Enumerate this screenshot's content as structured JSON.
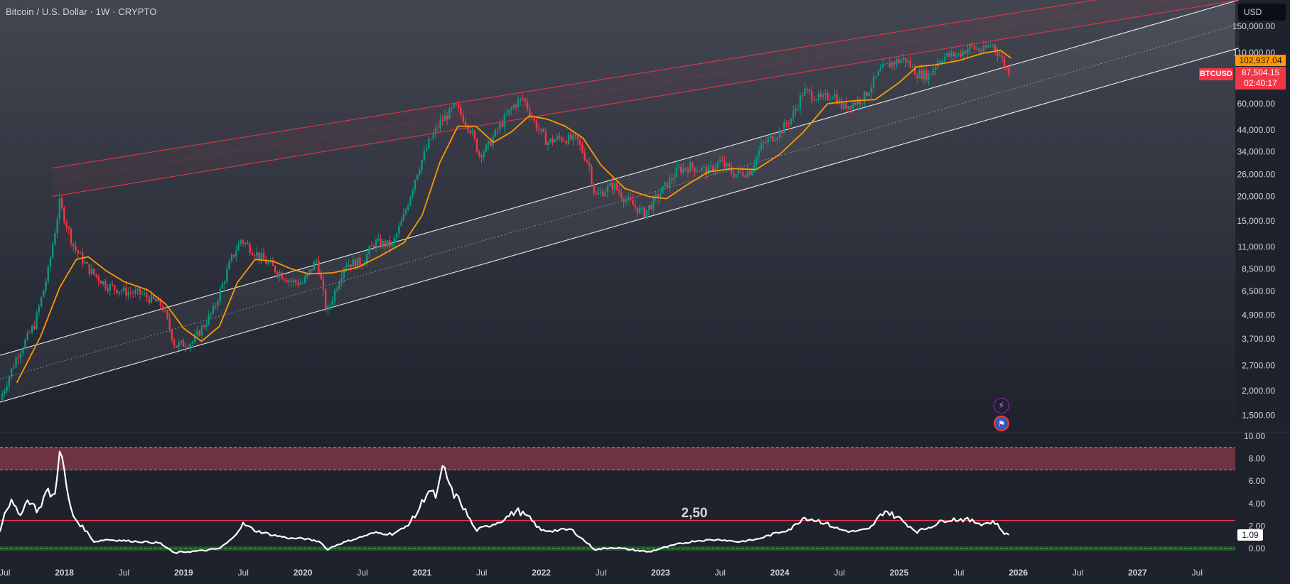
{
  "header": {
    "title": "Bitcoin / U.S. Dollar · 1W · CRYPTO",
    "currency": "USD"
  },
  "price_scale": {
    "ticker": "BTCUSD",
    "last_price": "87,504.15",
    "countdown": "02:40:17",
    "ma_value": "102,937.04",
    "ticks": [
      {
        "label": "150,000.00",
        "value": 150000
      },
      {
        "label": "110,000.00",
        "value": 110000
      },
      {
        "label": "60,000.00",
        "value": 60000
      },
      {
        "label": "44,000.00",
        "value": 44000
      },
      {
        "label": "34,000.00",
        "value": 34000
      },
      {
        "label": "26,000.00",
        "value": 26000
      },
      {
        "label": "20,000.00",
        "value": 20000
      },
      {
        "label": "15,000.00",
        "value": 15000
      },
      {
        "label": "11,000.00",
        "value": 11000
      },
      {
        "label": "8,500.00",
        "value": 8500
      },
      {
        "label": "6,500.00",
        "value": 6500
      },
      {
        "label": "4,900.00",
        "value": 4900
      },
      {
        "label": "3,700.00",
        "value": 3700
      },
      {
        "label": "2,700.00",
        "value": 2700
      },
      {
        "label": "2,000.00",
        "value": 2000
      },
      {
        "label": "1,500.00",
        "value": 1500
      }
    ]
  },
  "time_axis": {
    "ticks": [
      {
        "label": "Jul",
        "t": 2017.5
      },
      {
        "label": "2018",
        "t": 2018.0
      },
      {
        "label": "Jul",
        "t": 2018.5
      },
      {
        "label": "2019",
        "t": 2019.0
      },
      {
        "label": "Jul",
        "t": 2019.5
      },
      {
        "label": "2020",
        "t": 2020.0
      },
      {
        "label": "Jul",
        "t": 2020.5
      },
      {
        "label": "2021",
        "t": 2021.0
      },
      {
        "label": "Jul",
        "t": 2021.5
      },
      {
        "label": "2022",
        "t": 2022.0
      },
      {
        "label": "Jul",
        "t": 2022.5
      },
      {
        "label": "2023",
        "t": 2023.0
      },
      {
        "label": "Jul",
        "t": 2023.5
      },
      {
        "label": "2024",
        "t": 2024.0
      },
      {
        "label": "Jul",
        "t": 2024.5
      },
      {
        "label": "2025",
        "t": 2025.0
      },
      {
        "label": "Jul",
        "t": 2025.5
      },
      {
        "label": "2026",
        "t": 2026.0
      },
      {
        "label": "Jul",
        "t": 2026.5
      },
      {
        "label": "2027",
        "t": 2027.0
      },
      {
        "label": "Jul",
        "t": 2027.5
      }
    ]
  },
  "oscillator": {
    "current_value": "1.09",
    "level_label": "2,50",
    "ticks": [
      {
        "label": "10.00",
        "value": 10
      },
      {
        "label": "8.00",
        "value": 8
      },
      {
        "label": "6.00",
        "value": 6
      },
      {
        "label": "4.00",
        "value": 4
      },
      {
        "label": "2.00",
        "value": 2
      },
      {
        "label": "0.00",
        "value": 0
      }
    ]
  },
  "colors": {
    "background": "#1e222d",
    "candle_up": "#089981",
    "candle_down": "#f23645",
    "ma_line": "#ff9800",
    "channel_white": "#ffffff",
    "channel_red": "#f23645",
    "oscillator_line": "#ffffff",
    "overbought_zone": "#8a3a47",
    "oversold_zone": "#2e7d32"
  },
  "icons": [
    "flash-event-icon",
    "us-flag-event-icon"
  ],
  "chart_data": [
    {
      "type": "candlestick",
      "title": "Bitcoin / U.S. Dollar · 1W · CRYPTO",
      "scale": "log",
      "x_range": [
        2017.46,
        2027.82
      ],
      "y_range": [
        1230,
        205000
      ],
      "close_path": [
        [
          2017.46,
          1800
        ],
        [
          2017.6,
          3000
        ],
        [
          2017.75,
          4400
        ],
        [
          2017.86,
          8000
        ],
        [
          2017.96,
          18500
        ],
        [
          2018.08,
          11000
        ],
        [
          2018.2,
          8500
        ],
        [
          2018.35,
          7000
        ],
        [
          2018.5,
          6500
        ],
        [
          2018.65,
          6300
        ],
        [
          2018.82,
          5500
        ],
        [
          2018.93,
          3400
        ],
        [
          2019.08,
          3600
        ],
        [
          2019.25,
          5200
        ],
        [
          2019.4,
          9500
        ],
        [
          2019.48,
          12000
        ],
        [
          2019.6,
          10300
        ],
        [
          2019.75,
          8600
        ],
        [
          2019.9,
          7300
        ],
        [
          2020.0,
          7200
        ],
        [
          2020.12,
          9500
        ],
        [
          2020.2,
          5000
        ],
        [
          2020.35,
          9000
        ],
        [
          2020.5,
          9200
        ],
        [
          2020.6,
          11600
        ],
        [
          2020.75,
          11200
        ],
        [
          2020.85,
          16000
        ],
        [
          2020.95,
          26000
        ],
        [
          2021.05,
          37000
        ],
        [
          2021.15,
          48000
        ],
        [
          2021.28,
          58000
        ],
        [
          2021.4,
          45000
        ],
        [
          2021.48,
          33000
        ],
        [
          2021.55,
          36000
        ],
        [
          2021.65,
          46000
        ],
        [
          2021.78,
          60000
        ],
        [
          2021.85,
          64000
        ],
        [
          2021.95,
          47000
        ],
        [
          2022.05,
          38000
        ],
        [
          2022.15,
          40000
        ],
        [
          2022.3,
          39000
        ],
        [
          2022.4,
          29000
        ],
        [
          2022.45,
          20000
        ],
        [
          2022.6,
          23000
        ],
        [
          2022.7,
          19500
        ],
        [
          2022.86,
          16300
        ],
        [
          2023.0,
          21000
        ],
        [
          2023.15,
          27500
        ],
        [
          2023.25,
          28500
        ],
        [
          2023.4,
          27000
        ],
        [
          2023.5,
          30200
        ],
        [
          2023.62,
          26000
        ],
        [
          2023.75,
          27000
        ],
        [
          2023.85,
          37000
        ],
        [
          2024.0,
          43000
        ],
        [
          2024.1,
          51000
        ],
        [
          2024.2,
          70000
        ],
        [
          2024.35,
          63000
        ],
        [
          2024.45,
          68000
        ],
        [
          2024.52,
          58000
        ],
        [
          2024.6,
          60000
        ],
        [
          2024.7,
          64000
        ],
        [
          2024.85,
          90000
        ],
        [
          2024.95,
          98000
        ],
        [
          2025.05,
          102000
        ],
        [
          2025.15,
          86000
        ],
        [
          2025.25,
          84000
        ],
        [
          2025.35,
          104000
        ],
        [
          2025.5,
          108000
        ],
        [
          2025.6,
          118000
        ],
        [
          2025.7,
          112000
        ],
        [
          2025.78,
          122000
        ],
        [
          2025.84,
          108000
        ],
        [
          2025.9,
          91000
        ],
        [
          2025.94,
          87504
        ]
      ],
      "ma_path": [
        [
          2017.6,
          2200
        ],
        [
          2017.8,
          3800
        ],
        [
          2017.96,
          6800
        ],
        [
          2018.1,
          9500
        ],
        [
          2018.2,
          9800
        ],
        [
          2018.35,
          8300
        ],
        [
          2018.5,
          7300
        ],
        [
          2018.7,
          6600
        ],
        [
          2018.85,
          5600
        ],
        [
          2019.0,
          4200
        ],
        [
          2019.15,
          3600
        ],
        [
          2019.3,
          4300
        ],
        [
          2019.45,
          7200
        ],
        [
          2019.6,
          9500
        ],
        [
          2019.75,
          9300
        ],
        [
          2019.9,
          8500
        ],
        [
          2020.05,
          8000
        ],
        [
          2020.25,
          8100
        ],
        [
          2020.45,
          8600
        ],
        [
          2020.65,
          9900
        ],
        [
          2020.85,
          11600
        ],
        [
          2021.0,
          16000
        ],
        [
          2021.15,
          30000
        ],
        [
          2021.3,
          46000
        ],
        [
          2021.45,
          46000
        ],
        [
          2021.6,
          38000
        ],
        [
          2021.75,
          43000
        ],
        [
          2021.9,
          52000
        ],
        [
          2022.05,
          50000
        ],
        [
          2022.2,
          46000
        ],
        [
          2022.35,
          40000
        ],
        [
          2022.5,
          29000
        ],
        [
          2022.7,
          22000
        ],
        [
          2022.9,
          20000
        ],
        [
          2023.05,
          19500
        ],
        [
          2023.2,
          22500
        ],
        [
          2023.4,
          26800
        ],
        [
          2023.6,
          27800
        ],
        [
          2023.8,
          27500
        ],
        [
          2024.0,
          33000
        ],
        [
          2024.2,
          43000
        ],
        [
          2024.4,
          60000
        ],
        [
          2024.6,
          62000
        ],
        [
          2024.8,
          63000
        ],
        [
          2025.0,
          77000
        ],
        [
          2025.15,
          93000
        ],
        [
          2025.3,
          95000
        ],
        [
          2025.5,
          100000
        ],
        [
          2025.7,
          109000
        ],
        [
          2025.85,
          113000
        ],
        [
          2025.94,
          102937
        ]
      ],
      "channels": [
        {
          "color": "white",
          "points": [
            [
              2017.46,
              3050
            ],
            [
              2027.85,
              205000
            ]
          ]
        },
        {
          "color": "white",
          "style": "dotted",
          "points": [
            [
              2017.46,
              2300
            ],
            [
              2027.85,
              154000
            ]
          ]
        },
        {
          "color": "white",
          "points": [
            [
              2017.46,
              1750
            ],
            [
              2027.85,
              116000
            ]
          ]
        },
        {
          "color": "red",
          "points": [
            [
              2017.9,
              20000
            ],
            [
              2027.85,
              205000
            ]
          ]
        },
        {
          "color": "red",
          "style": "dotted",
          "points": [
            [
              2017.9,
              24000
            ],
            [
              2027.85,
              235000
            ]
          ]
        },
        {
          "color": "red",
          "points": [
            [
              2017.9,
              28000
            ],
            [
              2027.85,
              270000
            ]
          ]
        }
      ]
    },
    {
      "type": "line",
      "series": [
        {
          "values": [
            [
              2017.46,
              1.6
            ],
            [
              2017.5,
              3.3
            ],
            [
              2017.55,
              4.2
            ],
            [
              2017.62,
              3.0
            ],
            [
              2017.7,
              4.4
            ],
            [
              2017.78,
              3.3
            ],
            [
              2017.85,
              5.1
            ],
            [
              2017.92,
              4.6
            ],
            [
              2017.96,
              9.2
            ],
            [
              2018.02,
              5.3
            ],
            [
              2018.06,
              3.2
            ],
            [
              2018.1,
              2.5
            ],
            [
              2018.18,
              1.6
            ],
            [
              2018.25,
              0.6
            ],
            [
              2018.35,
              0.8
            ],
            [
              2018.5,
              0.7
            ],
            [
              2018.65,
              0.6
            ],
            [
              2018.8,
              0.5
            ],
            [
              2018.92,
              -0.4
            ],
            [
              2019.0,
              -0.3
            ],
            [
              2019.15,
              -0.2
            ],
            [
              2019.3,
              0.0
            ],
            [
              2019.4,
              0.8
            ],
            [
              2019.5,
              2.2
            ],
            [
              2019.6,
              1.6
            ],
            [
              2019.75,
              1.2
            ],
            [
              2019.9,
              0.9
            ],
            [
              2020.0,
              0.9
            ],
            [
              2020.15,
              0.6
            ],
            [
              2020.2,
              -0.1
            ],
            [
              2020.3,
              0.4
            ],
            [
              2020.45,
              0.9
            ],
            [
              2020.6,
              1.4
            ],
            [
              2020.75,
              1.3
            ],
            [
              2020.85,
              1.8
            ],
            [
              2020.95,
              3.0
            ],
            [
              2021.05,
              5.2
            ],
            [
              2021.12,
              4.6
            ],
            [
              2021.18,
              7.3
            ],
            [
              2021.25,
              5.0
            ],
            [
              2021.32,
              4.2
            ],
            [
              2021.4,
              2.6
            ],
            [
              2021.45,
              1.6
            ],
            [
              2021.55,
              2.0
            ],
            [
              2021.65,
              2.4
            ],
            [
              2021.8,
              3.4
            ],
            [
              2021.9,
              2.7
            ],
            [
              2022.0,
              1.6
            ],
            [
              2022.1,
              1.6
            ],
            [
              2022.25,
              1.7
            ],
            [
              2022.35,
              0.8
            ],
            [
              2022.45,
              -0.1
            ],
            [
              2022.6,
              0.1
            ],
            [
              2022.75,
              -0.1
            ],
            [
              2022.9,
              -0.3
            ],
            [
              2023.0,
              0.0
            ],
            [
              2023.15,
              0.4
            ],
            [
              2023.3,
              0.7
            ],
            [
              2023.5,
              0.8
            ],
            [
              2023.65,
              0.6
            ],
            [
              2023.8,
              0.8
            ],
            [
              2023.95,
              1.3
            ],
            [
              2024.1,
              1.8
            ],
            [
              2024.2,
              2.8
            ],
            [
              2024.35,
              2.4
            ],
            [
              2024.5,
              1.7
            ],
            [
              2024.6,
              1.5
            ],
            [
              2024.75,
              1.7
            ],
            [
              2024.88,
              3.4
            ],
            [
              2025.0,
              2.7
            ],
            [
              2025.15,
              1.5
            ],
            [
              2025.25,
              1.9
            ],
            [
              2025.4,
              2.6
            ],
            [
              2025.55,
              2.6
            ],
            [
              2025.7,
              2.2
            ],
            [
              2025.8,
              2.4
            ],
            [
              2025.88,
              1.4
            ],
            [
              2025.94,
              1.09
            ]
          ]
        }
      ],
      "levels": [
        2.5,
        0.0
      ],
      "overbought_zone": [
        7.0,
        9.0
      ],
      "y_range": [
        -0.5,
        10.0
      ]
    }
  ]
}
